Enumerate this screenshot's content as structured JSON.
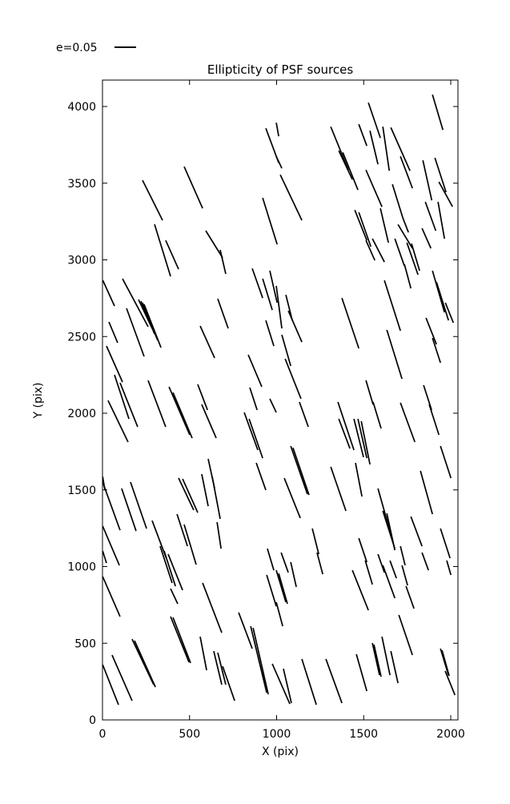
{
  "figure": {
    "background": "#ffffff",
    "line_color": "#000000"
  },
  "chart_data": {
    "type": "scatter",
    "subtype": "whisker-quiver (PSF ellipticity sticks)",
    "title": "Ellipticity of PSF sources",
    "xlabel": "X (pix)",
    "ylabel": "Y (pix)",
    "xlim": [
      0,
      2041
    ],
    "ylim": [
      0,
      4172
    ],
    "xticks": [
      0,
      500,
      1000,
      1500,
      2000
    ],
    "yticks": [
      0,
      500,
      1000,
      1500,
      2000,
      2500,
      3000,
      3500,
      4000
    ],
    "grid": false,
    "legend": {
      "label": "e=0.05",
      "position": "top-left-above-axes",
      "sample_length_data_units": 126
    },
    "segments": [
      [
        938,
        3858,
        1012,
        3633
      ],
      [
        1527,
        4025,
        1596,
        3795
      ],
      [
        1895,
        4077,
        1955,
        3847
      ],
      [
        1311,
        3868,
        1412,
        3586
      ],
      [
        1357,
        3712,
        1435,
        3524
      ],
      [
        1380,
        3701,
        1467,
        3456
      ],
      [
        1472,
        3884,
        1518,
        3743
      ],
      [
        1536,
        3842,
        1582,
        3623
      ],
      [
        1610,
        3869,
        1647,
        3581
      ],
      [
        1656,
        3863,
        1766,
        3581
      ],
      [
        1711,
        3675,
        1780,
        3467
      ],
      [
        1840,
        3649,
        1891,
        3388
      ],
      [
        1909,
        3665,
        1973,
        3441
      ],
      [
        1932,
        3508,
        2010,
        3347
      ],
      [
        1854,
        3378,
        1914,
        3190
      ],
      [
        1927,
        3378,
        1964,
        3138
      ],
      [
        1697,
        3231,
        1780,
        3075
      ],
      [
        1449,
        3325,
        1518,
        3127
      ],
      [
        1472,
        3310,
        1541,
        3086
      ],
      [
        1513,
        3586,
        1605,
        3346
      ],
      [
        1596,
        3336,
        1642,
        3112
      ],
      [
        1665,
        3493,
        1725,
        3273
      ],
      [
        1725,
        3273,
        1757,
        3179
      ],
      [
        1550,
        3138,
        1619,
        2986
      ],
      [
        1679,
        3138,
        1734,
        2960
      ],
      [
        1734,
        2971,
        1771,
        2814
      ],
      [
        469,
        3608,
        575,
        3336
      ],
      [
        230,
        3519,
        345,
        3258
      ],
      [
        920,
        3404,
        1003,
        3101
      ],
      [
        299,
        3232,
        391,
        2892
      ],
      [
        363,
        3127,
        437,
        2939
      ],
      [
        593,
        3190,
        690,
        3013
      ],
      [
        676,
        3065,
        708,
        2908
      ],
      [
        2,
        2866,
        69,
        2699
      ],
      [
        115,
        2877,
        262,
        2564
      ],
      [
        207,
        2741,
        285,
        2553
      ],
      [
        221,
        2731,
        299,
        2517
      ],
      [
        230,
        2720,
        317,
        2475
      ],
      [
        239,
        2710,
        336,
        2428
      ],
      [
        138,
        2684,
        239,
        2370
      ],
      [
        37,
        2595,
        87,
        2459
      ],
      [
        561,
        2569,
        644,
        2360
      ],
      [
        662,
        2746,
        722,
        2553
      ],
      [
        860,
        2944,
        920,
        2751
      ],
      [
        920,
        2877,
        975,
        2673
      ],
      [
        961,
        2929,
        1003,
        2720
      ],
      [
        23,
        2438,
        115,
        2203
      ],
      [
        69,
        2250,
        152,
        1963
      ],
      [
        101,
        2198,
        202,
        1911
      ],
      [
        32,
        2083,
        147,
        1812
      ],
      [
        262,
        2214,
        363,
        1911
      ],
      [
        382,
        2172,
        501,
        1859
      ],
      [
        405,
        2135,
        515,
        1838
      ],
      [
        547,
        2188,
        603,
        2021
      ],
      [
        570,
        2057,
        653,
        1838
      ],
      [
        837,
        2381,
        915,
        2172
      ],
      [
        846,
        2167,
        888,
        2021
      ],
      [
        814,
        2005,
        892,
        1760
      ],
      [
        842,
        1963,
        920,
        1707
      ],
      [
        883,
        1676,
        938,
        1499
      ],
      [
        1513,
        3127,
        1564,
        2997
      ],
      [
        1748,
        3112,
        1812,
        2903
      ],
      [
        1775,
        3106,
        1821,
        2929
      ],
      [
        1895,
        2929,
        1964,
        2658
      ],
      [
        1918,
        2856,
        1987,
        2605
      ],
      [
        1969,
        2720,
        2015,
        2590
      ],
      [
        998,
        2830,
        1030,
        2553
      ],
      [
        1053,
        2772,
        1090,
        2605
      ],
      [
        1067,
        2668,
        1145,
        2464
      ],
      [
        1375,
        2751,
        1472,
        2423
      ],
      [
        1619,
        2866,
        1711,
        2538
      ],
      [
        1633,
        2543,
        1720,
        2224
      ],
      [
        1858,
        2621,
        1918,
        2449
      ],
      [
        1895,
        2490,
        1941,
        2329
      ],
      [
        1030,
        2511,
        1081,
        2308
      ],
      [
        1049,
        2355,
        1140,
        2094
      ],
      [
        1131,
        2073,
        1182,
        1911
      ],
      [
        1513,
        2214,
        1554,
        2057
      ],
      [
        1554,
        2073,
        1600,
        1901
      ],
      [
        1844,
        2183,
        1890,
        2021
      ],
      [
        1876,
        2057,
        1932,
        1859
      ],
      [
        1835,
        3206,
        1886,
        3075
      ],
      [
        1,
        1587,
        14,
        1499
      ],
      [
        1,
        1551,
        101,
        1237
      ],
      [
        110,
        1509,
        193,
        1232
      ],
      [
        161,
        1551,
        253,
        1248
      ],
      [
        1,
        1264,
        97,
        1008
      ],
      [
        1,
        1102,
        23,
        1023
      ],
      [
        285,
        1300,
        368,
        1050
      ],
      [
        331,
        1133,
        400,
        893
      ],
      [
        354,
        1102,
        419,
        872
      ],
      [
        377,
        1081,
        460,
        846
      ],
      [
        391,
        856,
        432,
        757
      ],
      [
        428,
        1342,
        488,
        1133
      ],
      [
        469,
        1274,
        538,
        1013
      ],
      [
        437,
        1577,
        524,
        1368
      ],
      [
        460,
        1572,
        547,
        1352
      ],
      [
        570,
        1603,
        607,
        1394
      ],
      [
        607,
        1702,
        644,
        1509
      ],
      [
        630,
        1587,
        676,
        1311
      ],
      [
        658,
        1290,
        681,
        1117
      ],
      [
        947,
        1117,
        984,
        976
      ],
      [
        1026,
        1091,
        1067,
        961
      ],
      [
        961,
        2094,
        998,
        2005
      ],
      [
        938,
        2605,
        984,
        2438
      ],
      [
        1352,
        2073,
        1444,
        1760
      ],
      [
        1357,
        1963,
        1421,
        1770
      ],
      [
        1444,
        1963,
        1499,
        1713
      ],
      [
        1467,
        1963,
        1518,
        1707
      ],
      [
        1486,
        1948,
        1536,
        1666
      ],
      [
        1711,
        2068,
        1794,
        1812
      ],
      [
        1941,
        1786,
        2001,
        1577
      ],
      [
        1081,
        1786,
        1177,
        1472
      ],
      [
        1094,
        1775,
        1186,
        1467
      ],
      [
        1044,
        1577,
        1136,
        1316
      ],
      [
        1311,
        1650,
        1398,
        1363
      ],
      [
        1453,
        1676,
        1490,
        1457
      ],
      [
        1582,
        1509,
        1656,
        1211
      ],
      [
        1610,
        1363,
        1679,
        1117
      ],
      [
        1633,
        1347,
        1679,
        1107
      ],
      [
        1771,
        1326,
        1835,
        1133
      ],
      [
        1826,
        1624,
        1895,
        1342
      ],
      [
        1941,
        1248,
        1996,
        1055
      ],
      [
        1472,
        1185,
        1518,
        1029
      ],
      [
        1509,
        1039,
        1550,
        883
      ],
      [
        1711,
        1133,
        1738,
        1008
      ],
      [
        1720,
        1008,
        1752,
        877
      ],
      [
        1582,
        1081,
        1619,
        961
      ],
      [
        1610,
        1008,
        1679,
        794
      ],
      [
        1651,
        1039,
        1688,
        924
      ],
      [
        1205,
        1248,
        1242,
        1081
      ],
      [
        1232,
        1091,
        1265,
        950
      ],
      [
        1835,
        1091,
        1872,
        976
      ],
      [
        1,
        935,
        101,
        674
      ],
      [
        575,
        893,
        685,
        569
      ],
      [
        391,
        674,
        497,
        376
      ],
      [
        405,
        668,
        506,
        371
      ],
      [
        170,
        527,
        294,
        230
      ],
      [
        184,
        517,
        304,
        214
      ],
      [
        55,
        423,
        170,
        125
      ],
      [
        1,
        360,
        92,
        99
      ],
      [
        561,
        543,
        598,
        324
      ],
      [
        639,
        449,
        685,
        230
      ],
      [
        662,
        439,
        708,
        230
      ],
      [
        690,
        350,
        759,
        125
      ],
      [
        782,
        700,
        860,
        465
      ],
      [
        851,
        611,
        943,
        178
      ],
      [
        865,
        600,
        952,
        167
      ],
      [
        943,
        945,
        998,
        741
      ],
      [
        998,
        976,
        1053,
        768
      ],
      [
        1012,
        955,
        1062,
        757
      ],
      [
        1081,
        1029,
        1113,
        867
      ],
      [
        998,
        768,
        1035,
        611
      ],
      [
        1435,
        976,
        1527,
        715
      ],
      [
        1743,
        872,
        1789,
        726
      ],
      [
        1977,
        1039,
        2001,
        945
      ],
      [
        1702,
        684,
        1780,
        423
      ],
      [
        1941,
        465,
        1987,
        292
      ],
      [
        1950,
        454,
        1991,
        287
      ],
      [
        1458,
        428,
        1518,
        188
      ],
      [
        1550,
        501,
        1591,
        292
      ],
      [
        1559,
        491,
        1600,
        282
      ],
      [
        1605,
        543,
        1651,
        292
      ],
      [
        1656,
        449,
        1697,
        240
      ],
      [
        1145,
        397,
        1228,
        99
      ],
      [
        975,
        366,
        1076,
        104
      ],
      [
        1039,
        334,
        1085,
        110
      ],
      [
        1283,
        397,
        1375,
        110
      ],
      [
        1968,
        319,
        2024,
        162
      ],
      [
        998,
        3675,
        1030,
        3597
      ],
      [
        1021,
        3555,
        1145,
        3258
      ],
      [
        998,
        3894,
        1012,
        3806
      ]
    ]
  }
}
